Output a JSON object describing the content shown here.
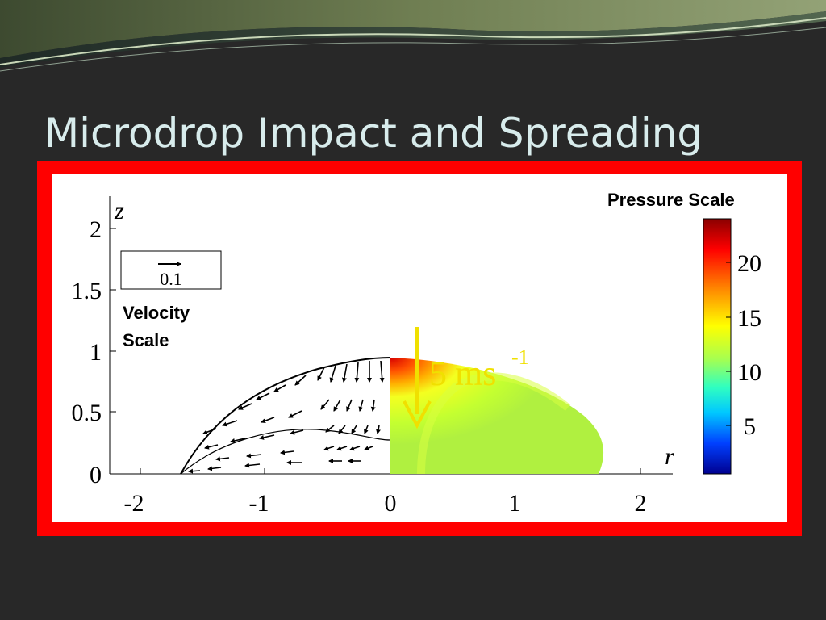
{
  "slide": {
    "title": "Microdrop Impact and Spreading"
  },
  "figure": {
    "x_axis_label": "r",
    "y_axis_label": "z",
    "x_ticks": [
      "-2",
      "-1",
      "0",
      "1",
      "2"
    ],
    "y_ticks": [
      "0",
      "0.5",
      "1",
      "1.5",
      "2"
    ],
    "velocity_scale": {
      "value_label": "0.1",
      "caption_line1": "Velocity",
      "caption_line2": "Scale"
    },
    "pressure_scale": {
      "title": "Pressure Scale",
      "ticks": [
        "20",
        "15",
        "10",
        "5"
      ]
    },
    "impact_speed": {
      "value": "5",
      "unit": "ms",
      "exponent": "-1"
    },
    "colors": {
      "frame": "#ff0000",
      "background": "#282828",
      "title_text": "#d8ecec",
      "impact_arrow": "#f0e000"
    }
  }
}
